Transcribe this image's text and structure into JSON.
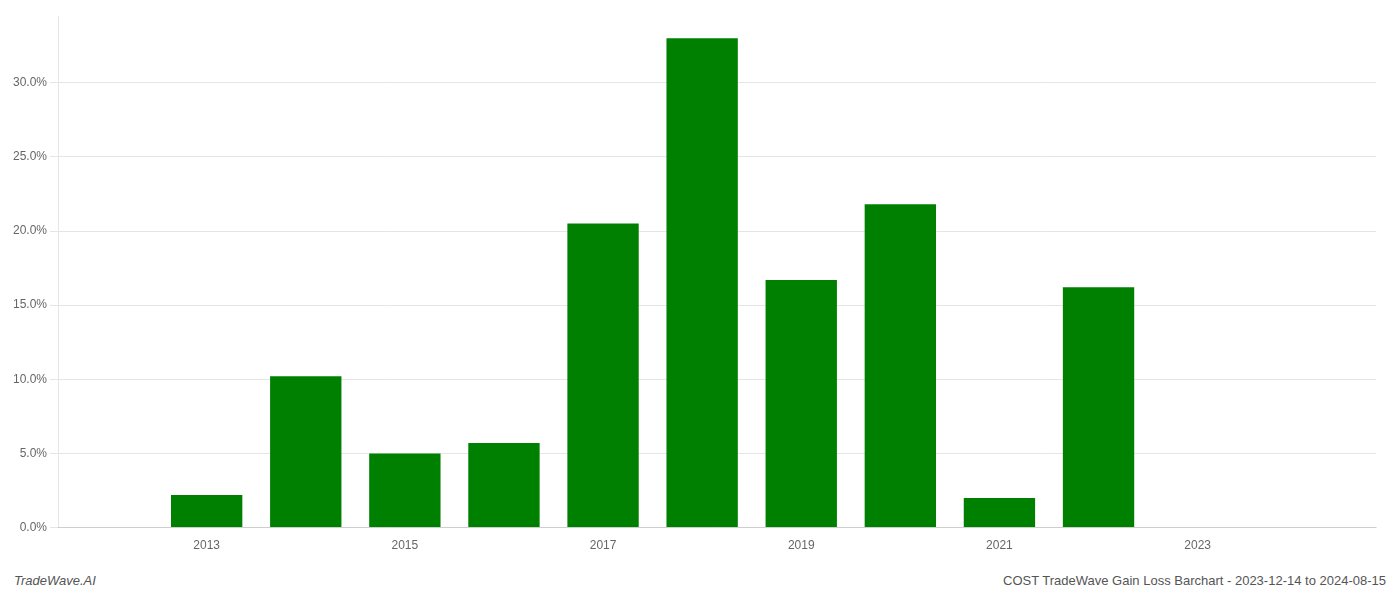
{
  "chart_data": {
    "type": "bar",
    "x": [
      2013,
      2014,
      2015,
      2016,
      2017,
      2018,
      2019,
      2020,
      2021,
      2022,
      2023
    ],
    "values": [
      0.022,
      0.102,
      0.05,
      0.057,
      0.205,
      0.33,
      0.167,
      0.218,
      0.02,
      0.162,
      0.0
    ],
    "color": "#008000",
    "xlim": [
      2011.5,
      2024.8
    ],
    "xticks": [
      2013,
      2015,
      2017,
      2019,
      2021,
      2023
    ],
    "ylim": [
      0,
      0.345
    ],
    "yticks": [
      {
        "value": 0.0,
        "label": "0.0%"
      },
      {
        "value": 0.05,
        "label": "5.0%"
      },
      {
        "value": 0.1,
        "label": "10.0%"
      },
      {
        "value": 0.15,
        "label": "15.0%"
      },
      {
        "value": 0.2,
        "label": "20.0%"
      },
      {
        "value": 0.25,
        "label": "25.0%"
      },
      {
        "value": 0.3,
        "label": "30.0%"
      }
    ],
    "grid": true,
    "annotations": [
      "TradeWave.AI",
      "COST TradeWave Gain Loss Barchart - 2023-12-14 to 2024-08-15"
    ]
  }
}
